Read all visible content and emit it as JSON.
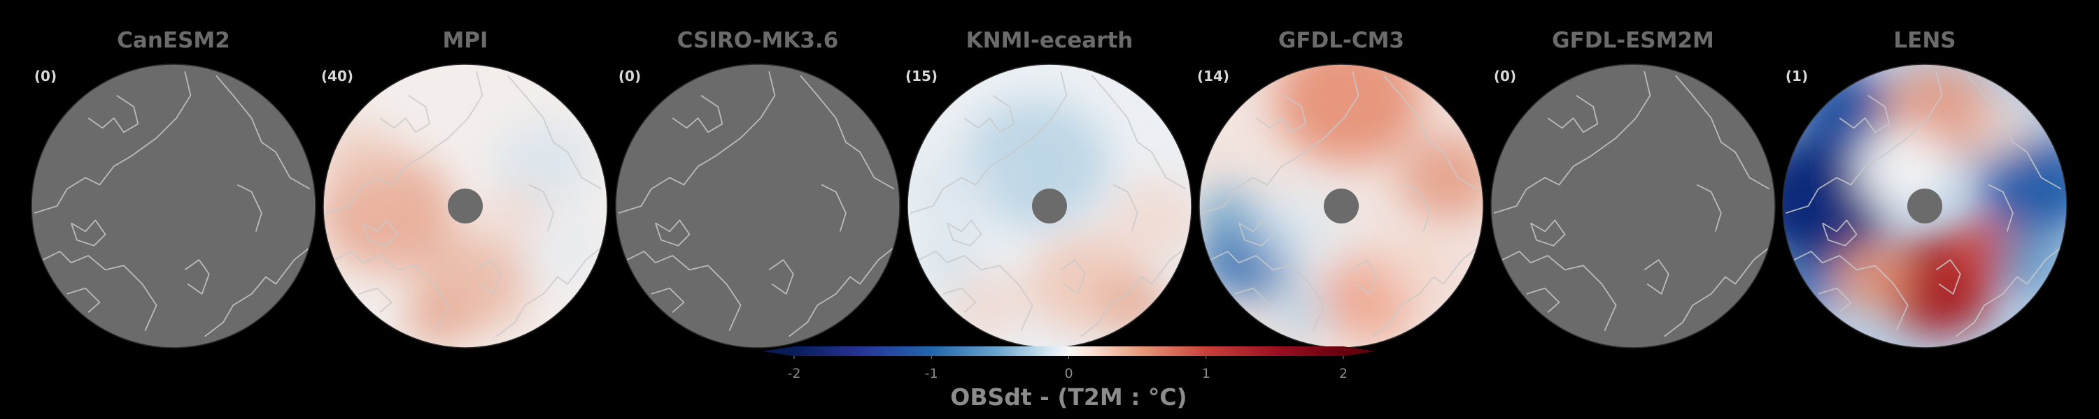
{
  "chart_data": {
    "type": "heatmap",
    "projection": "north-polar-stereographic",
    "panels": [
      {
        "model": "CanESM2",
        "count_label": "(0)",
        "count": 0,
        "field": "no-data"
      },
      {
        "model": "MPI",
        "count_label": "(40)",
        "count": 40,
        "field": "weak-warm-anomaly"
      },
      {
        "model": "CSIRO-MK3.6",
        "count_label": "(0)",
        "count": 0,
        "field": "no-data"
      },
      {
        "model": "KNMI-ecearth",
        "count_label": "(15)",
        "count": 15,
        "field": "weak-cool-anomaly"
      },
      {
        "model": "GFDL-CM3",
        "count_label": "(14)",
        "count": 14,
        "field": "mixed-anomaly"
      },
      {
        "model": "GFDL-ESM2M",
        "count_label": "(0)",
        "count": 0,
        "field": "no-data"
      },
      {
        "model": "LENS",
        "count_label": "(1)",
        "count": 1,
        "field": "strong-dipole-anomaly"
      }
    ],
    "colorbar": {
      "label": "OBSdt - (T2M : °C)",
      "range": [
        -2,
        2
      ],
      "ticks": [
        -2,
        -1,
        0,
        1,
        2
      ],
      "tick_labels": [
        "-2",
        "-1",
        "0",
        "1",
        "2"
      ],
      "colormap": "diverging-blue-white-red",
      "extend": "both"
    },
    "colors": {
      "background": "#000000",
      "no_data_fill": "#6b6b6b",
      "coastline": "#c9c9c9",
      "pole_mask": "#6b6b6b",
      "cold_extreme": "#081d58",
      "neutral": "#f7f7f7",
      "warm_extreme": "#67000d"
    }
  }
}
